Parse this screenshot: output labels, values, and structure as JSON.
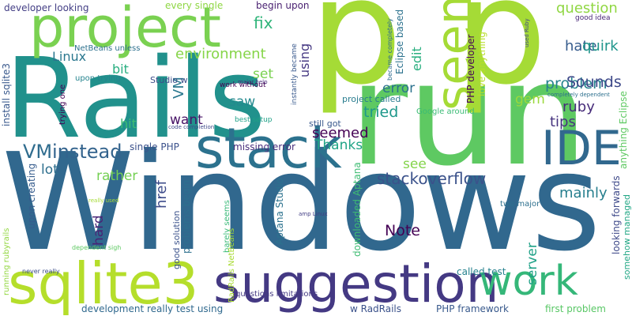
{
  "words": [
    {
      "text": "Windows",
      "color": "#31688e"
    },
    {
      "text": "run",
      "color": "#5ec962"
    },
    {
      "text": "p",
      "color": "#a5db36"
    },
    {
      "text": "p",
      "color": "#a5db36"
    },
    {
      "text": "Rails",
      "color": "#21918c"
    },
    {
      "text": "suggestion",
      "color": "#443983"
    },
    {
      "text": "project",
      "color": "#7ad151"
    },
    {
      "text": "sqlite3",
      "color": "#b5de2b"
    },
    {
      "text": "work",
      "color": "#35b779"
    },
    {
      "text": "stack",
      "color": "#2c728e"
    },
    {
      "text": "IDE",
      "color": "#31688e"
    },
    {
      "text": "seem",
      "color": "#a5db36"
    },
    {
      "text": "instead",
      "color": "#33638d"
    },
    {
      "text": "VM",
      "color": "#2f6c8e"
    },
    {
      "text": "stackoverflow",
      "color": "#3b528b"
    },
    {
      "text": "environment",
      "color": "#86d549"
    },
    {
      "text": "problem",
      "color": "#26828e"
    },
    {
      "text": "Sounds",
      "color": "#3e4989"
    },
    {
      "text": "question",
      "color": "#90d743"
    },
    {
      "text": "hate",
      "color": "#365c8d"
    },
    {
      "text": "quirk",
      "color": "#1f958b"
    },
    {
      "text": "ruby",
      "color": "#472c7a"
    },
    {
      "text": "tips",
      "color": "#46337f"
    },
    {
      "text": "mainly",
      "color": "#277f8e"
    },
    {
      "text": "Thanks",
      "color": "#20a486"
    },
    {
      "text": "seemed",
      "color": "#440154"
    },
    {
      "text": "Linux",
      "color": "#2a778e"
    },
    {
      "text": "bit",
      "color": "#28ae80"
    },
    {
      "text": "hit",
      "color": "#3fbc73"
    },
    {
      "text": "want",
      "color": "#481467"
    },
    {
      "text": "saw",
      "color": "#23898e"
    },
    {
      "text": "set",
      "color": "#7ad151"
    },
    {
      "text": "error",
      "color": "#2c728e"
    },
    {
      "text": "tried",
      "color": "#1f988b"
    },
    {
      "text": "gem",
      "color": "#9bd93c"
    },
    {
      "text": "fix",
      "color": "#31b57b"
    },
    {
      "text": "lot",
      "color": "#2e6f8e"
    },
    {
      "text": "rather",
      "color": "#75d054"
    },
    {
      "text": "hard",
      "color": "#482475"
    },
    {
      "text": "see",
      "color": "#84d44b"
    },
    {
      "text": "Note",
      "color": "#440154"
    },
    {
      "text": "server",
      "color": "#1fa187"
    },
    {
      "text": "VM",
      "color": "#2a788e"
    },
    {
      "text": "href",
      "color": "#3e4c8a"
    },
    {
      "text": "using",
      "color": "#453882"
    },
    {
      "text": "edit",
      "color": "#29af7f"
    },
    {
      "text": "developer looking",
      "color": "#433e85"
    },
    {
      "text": "every single",
      "color": "#8fd744"
    },
    {
      "text": "begin upon",
      "color": "#481f70"
    },
    {
      "text": "install sqlite3",
      "color": "#38588c"
    },
    {
      "text": "NetBeans unless",
      "color": "#2d718e"
    },
    {
      "text": "upon trying",
      "color": "#25848e"
    },
    {
      "text": "trying one",
      "color": "#440154"
    },
    {
      "text": "Studio w",
      "color": "#3d4e8a"
    },
    {
      "text": "single PHP",
      "color": "#3b518b"
    },
    {
      "text": "missing error",
      "color": "#472d7b"
    },
    {
      "text": "upon creating",
      "color": "#365c8d"
    },
    {
      "text": "good solution",
      "color": "#3b528b"
    },
    {
      "text": "problems begin",
      "color": "#2d708e"
    },
    {
      "text": "barely seems",
      "color": "#38b977"
    },
    {
      "text": "Aptana Studio",
      "color": "#2c728e"
    },
    {
      "text": "downloaded Aptana",
      "color": "#3fbc73"
    },
    {
      "text": "project called",
      "color": "#287c8e"
    },
    {
      "text": "Google around",
      "color": "#3bbb75"
    },
    {
      "text": "still got",
      "color": "#38588c"
    },
    {
      "text": "PHP developer",
      "color": "#450457"
    },
    {
      "text": "love anything",
      "color": "#b8de29"
    },
    {
      "text": "Eclipse based",
      "color": "#2c728e"
    },
    {
      "text": "became completely",
      "color": "#2f6c8e"
    },
    {
      "text": "good idea",
      "color": "#482677"
    },
    {
      "text": "used Ruby",
      "color": "#3f4788"
    },
    {
      "text": "completely dependent",
      "color": "#2d708e"
    },
    {
      "text": "anything Eclipse",
      "color": "#5ec962"
    },
    {
      "text": "looking forwards",
      "color": "#3e4989"
    },
    {
      "text": "somehow managed",
      "color": "#22a785"
    },
    {
      "text": "two major",
      "color": "#2d708e"
    },
    {
      "text": "first problem",
      "color": "#58c765"
    },
    {
      "text": "called test",
      "color": "#26828e"
    },
    {
      "text": "PHP framework",
      "color": "#38598c"
    },
    {
      "text": "w RadRails",
      "color": "#3b528b"
    },
    {
      "text": "development really test using",
      "color": "#30698e"
    },
    {
      "text": "questions limitations",
      "color": "#443983"
    },
    {
      "text": "RadRails NetBeans",
      "color": "#a8db34"
    },
    {
      "text": "running rubyrails",
      "color": "#93d741"
    },
    {
      "text": "never really",
      "color": "#3d4e8a"
    },
    {
      "text": "dependent sigh",
      "color": "#5ec962"
    },
    {
      "text": "really used",
      "color": "#a5db36"
    },
    {
      "text": "amp Linux",
      "color": "#433e85"
    },
    {
      "text": "major help",
      "color": "#472d7b"
    },
    {
      "text": "work without",
      "color": "#440154"
    },
    {
      "text": "best setup",
      "color": "#1fa187"
    },
    {
      "text": "code completion",
      "color": "#3e4989"
    },
    {
      "text": "instantly became",
      "color": "#38588c"
    }
  ]
}
